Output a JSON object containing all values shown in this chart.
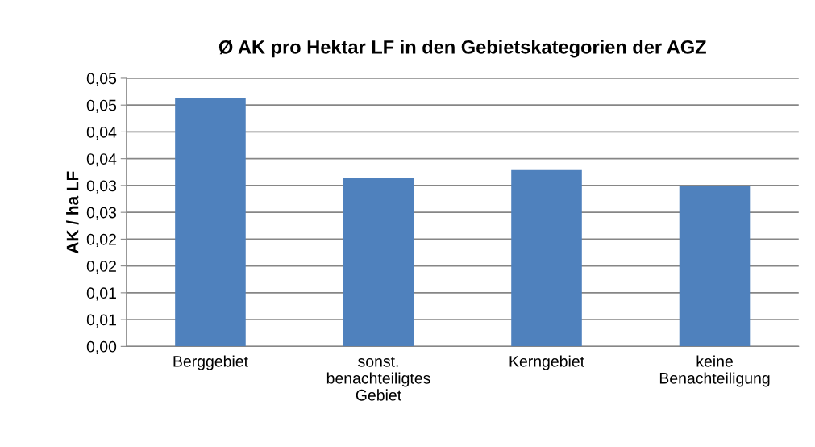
{
  "chart_data": {
    "type": "bar",
    "title": "Ø AK pro Hektar LF in den Gebietskategorien der AGZ",
    "ylabel": "AK / ha LF",
    "categories": [
      "Berggebiet",
      "sonst.\nbenachteiligtes\nGebiet",
      "Kerngebiet",
      "keine\nBenachteiligung"
    ],
    "values": [
      0.0463,
      0.0314,
      0.0329,
      0.03
    ],
    "color": "#4f81bd",
    "ylim": [
      0,
      0.05
    ],
    "yticks": [
      {
        "value": 0,
        "label": "0,00"
      },
      {
        "value": 0.005,
        "label": "0,01"
      },
      {
        "value": 0.01,
        "label": "0,01"
      },
      {
        "value": 0.015,
        "label": "0,02"
      },
      {
        "value": 0.02,
        "label": "0,02"
      },
      {
        "value": 0.025,
        "label": "0,03"
      },
      {
        "value": 0.03,
        "label": "0,03"
      },
      {
        "value": 0.035,
        "label": "0,04"
      },
      {
        "value": 0.04,
        "label": "0,04"
      },
      {
        "value": 0.045,
        "label": "0,05"
      },
      {
        "value": 0.05,
        "label": "0,05"
      }
    ],
    "grid": "y"
  }
}
